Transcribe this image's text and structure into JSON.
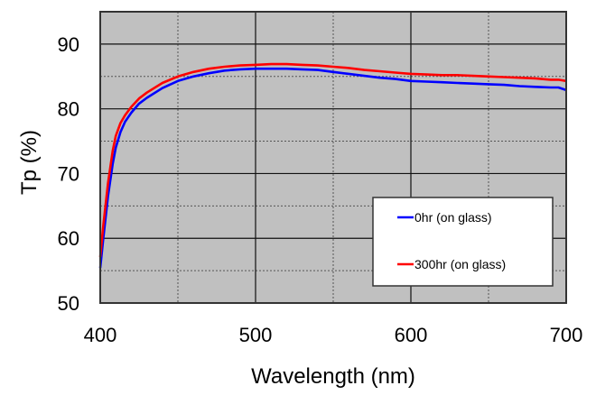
{
  "chart_data": {
    "type": "line",
    "title": "",
    "xlabel": "Wavelength (nm)",
    "ylabel": "Tp (%)",
    "xlim": [
      400,
      700
    ],
    "ylim": [
      50,
      95
    ],
    "xticks": [
      400,
      500,
      600,
      700
    ],
    "xtick_labels": [
      "400",
      "500",
      "600",
      "700"
    ],
    "yticks": [
      50,
      60,
      70,
      80,
      90
    ],
    "ytick_labels": [
      "50",
      "60",
      "70",
      "80",
      "90"
    ],
    "x_minor_grid": [
      450,
      550,
      650
    ],
    "y_minor_grid": [
      55,
      65,
      75,
      85
    ],
    "grid": true,
    "legend_position": "lower-right",
    "plot_background": "#c0c0c0",
    "series": [
      {
        "name": "0hr (on glass)",
        "color": "#0000ff",
        "x": [
          400,
          402,
          405,
          408,
          410,
          413,
          416,
          420,
          425,
          430,
          440,
          450,
          460,
          470,
          480,
          490,
          500,
          510,
          520,
          530,
          540,
          550,
          560,
          570,
          580,
          590,
          600,
          610,
          620,
          630,
          640,
          650,
          660,
          670,
          680,
          690,
          695,
          700
        ],
        "y": [
          55.4,
          60.0,
          66.5,
          71.5,
          74.0,
          76.4,
          78.0,
          79.4,
          80.8,
          81.7,
          83.2,
          84.3,
          85.0,
          85.5,
          85.9,
          86.1,
          86.2,
          86.2,
          86.2,
          86.1,
          86.0,
          85.7,
          85.4,
          85.1,
          84.8,
          84.6,
          84.3,
          84.2,
          84.1,
          84.0,
          83.9,
          83.8,
          83.7,
          83.5,
          83.4,
          83.3,
          83.3,
          82.9
        ]
      },
      {
        "name": "300hr (on glass)",
        "color": "#ff0000",
        "x": [
          400,
          402,
          405,
          408,
          410,
          413,
          416,
          420,
          425,
          430,
          440,
          450,
          460,
          470,
          480,
          490,
          500,
          510,
          520,
          530,
          540,
          550,
          560,
          570,
          580,
          590,
          600,
          610,
          620,
          630,
          640,
          650,
          660,
          670,
          680,
          690,
          695,
          700
        ],
        "y": [
          57.1,
          62.0,
          68.5,
          73.5,
          75.8,
          77.8,
          79.0,
          80.3,
          81.6,
          82.5,
          84.0,
          85.0,
          85.7,
          86.2,
          86.5,
          86.7,
          86.8,
          86.9,
          86.9,
          86.8,
          86.7,
          86.5,
          86.3,
          86.0,
          85.8,
          85.6,
          85.4,
          85.3,
          85.2,
          85.2,
          85.1,
          85.0,
          84.9,
          84.8,
          84.7,
          84.5,
          84.5,
          84.3
        ]
      }
    ]
  }
}
